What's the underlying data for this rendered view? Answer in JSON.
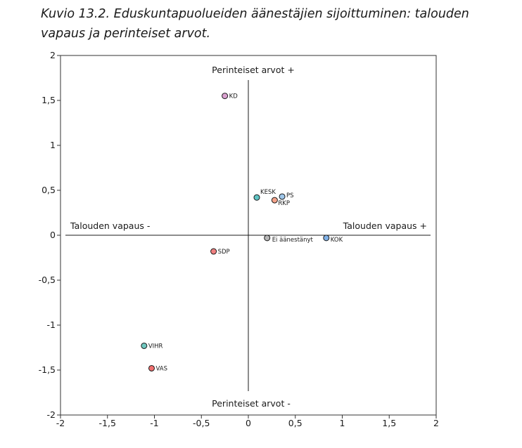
{
  "chart_data": {
    "type": "scatter",
    "title": "Kuvio 13.2. Eduskuntapuolueiden äänestäjien sijoittuminen: talouden vapaus ja perinteiset arvot.",
    "xlim": [
      -2,
      2
    ],
    "ylim": [
      -2,
      2
    ],
    "x_ticks": [
      "-2",
      "-1,5",
      "-1",
      "-0,5",
      "0",
      "0,5",
      "1",
      "1,5",
      "2"
    ],
    "y_ticks": [
      "2",
      "1,5",
      "1",
      "0,5",
      "0",
      "-0,5",
      "-1",
      "-1,5",
      "-2"
    ],
    "axis_labels": {
      "top": "Perinteiset arvot +",
      "bottom": "Perinteiset arvot -",
      "left": "Talouden vapaus -",
      "right": "Talouden vapaus +"
    },
    "grid": false,
    "points": [
      {
        "label": "KD",
        "x": -0.25,
        "y": 1.55,
        "color": "#d9a0cf"
      },
      {
        "label": "KESK",
        "x": 0.09,
        "y": 0.42,
        "color": "#5fc4c4"
      },
      {
        "label": "PS",
        "x": 0.36,
        "y": 0.43,
        "color": "#9fc7ea"
      },
      {
        "label": "RKP",
        "x": 0.28,
        "y": 0.39,
        "color": "#f4a38a"
      },
      {
        "label": "Ei äänestänyt",
        "x": 0.2,
        "y": -0.03,
        "color": "#b7b7b7"
      },
      {
        "label": "KOK",
        "x": 0.83,
        "y": -0.03,
        "color": "#7fb0e6"
      },
      {
        "label": "SDP",
        "x": -0.37,
        "y": -0.18,
        "color": "#f08080"
      },
      {
        "label": "VIHR",
        "x": -1.11,
        "y": -1.23,
        "color": "#6fc7bf"
      },
      {
        "label": "VAS",
        "x": -1.03,
        "y": -1.48,
        "color": "#ef6f6f"
      }
    ]
  }
}
